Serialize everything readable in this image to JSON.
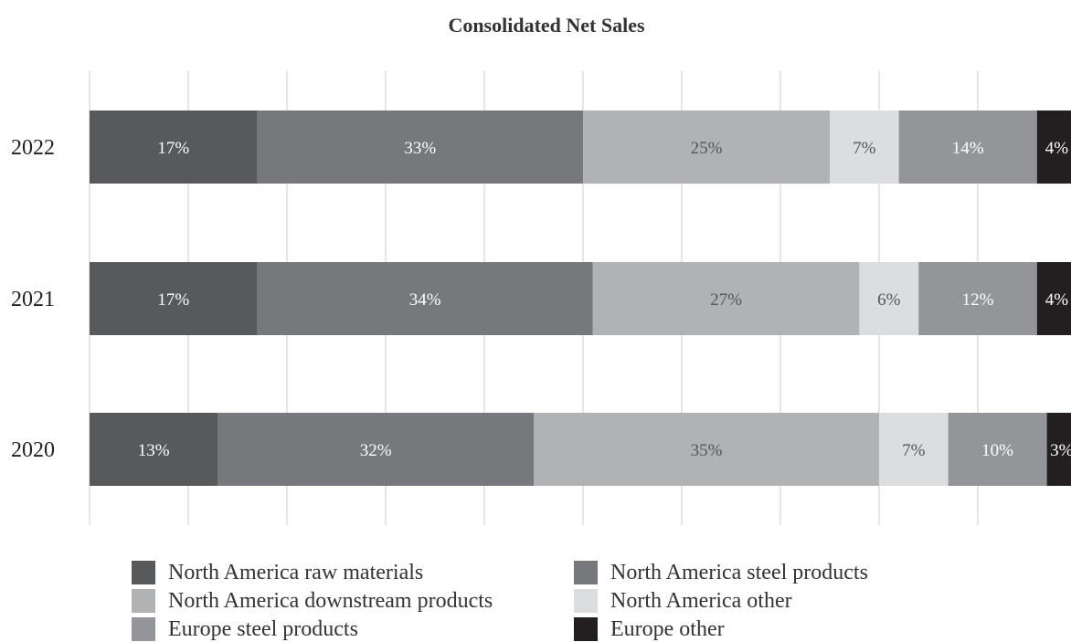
{
  "chart_data": {
    "type": "bar",
    "orientation": "horizontal",
    "stacked": true,
    "title": "Consolidated Net Sales",
    "categories": [
      "2022",
      "2021",
      "2020"
    ],
    "series": [
      {
        "name": "North America raw materials",
        "color": "#58595b",
        "values": [
          17,
          17,
          13
        ],
        "labels": [
          "17%",
          "17%",
          "13%"
        ],
        "label_color": "#ffffff"
      },
      {
        "name": "North America steel products",
        "color": "#77787b",
        "values": [
          33,
          34,
          32
        ],
        "labels": [
          "33%",
          "34%",
          "32%"
        ],
        "label_color": "#ffffff"
      },
      {
        "name": "North America downstream products",
        "color": "#b1b2b4",
        "values": [
          25,
          27,
          35
        ],
        "labels": [
          "25%",
          "27%",
          "35%"
        ],
        "label_color": "#555555"
      },
      {
        "name": "North America other",
        "color": "#dcdddf",
        "values": [
          7,
          6,
          7
        ],
        "labels": [
          "7%",
          "6%",
          "7%"
        ],
        "label_color": "#555555"
      },
      {
        "name": "Europe steel products",
        "color": "#939598",
        "values": [
          14,
          12,
          10
        ],
        "labels": [
          "14%",
          "12%",
          "10%"
        ],
        "label_color": "#ffffff"
      },
      {
        "name": "Europe other",
        "color": "#231f20",
        "values": [
          4,
          4,
          3
        ],
        "labels": [
          "4%",
          "4%",
          "3%"
        ],
        "label_color": "#ffffff"
      }
    ],
    "xlim": [
      0,
      100
    ],
    "grid": true,
    "legend_position": "bottom"
  }
}
